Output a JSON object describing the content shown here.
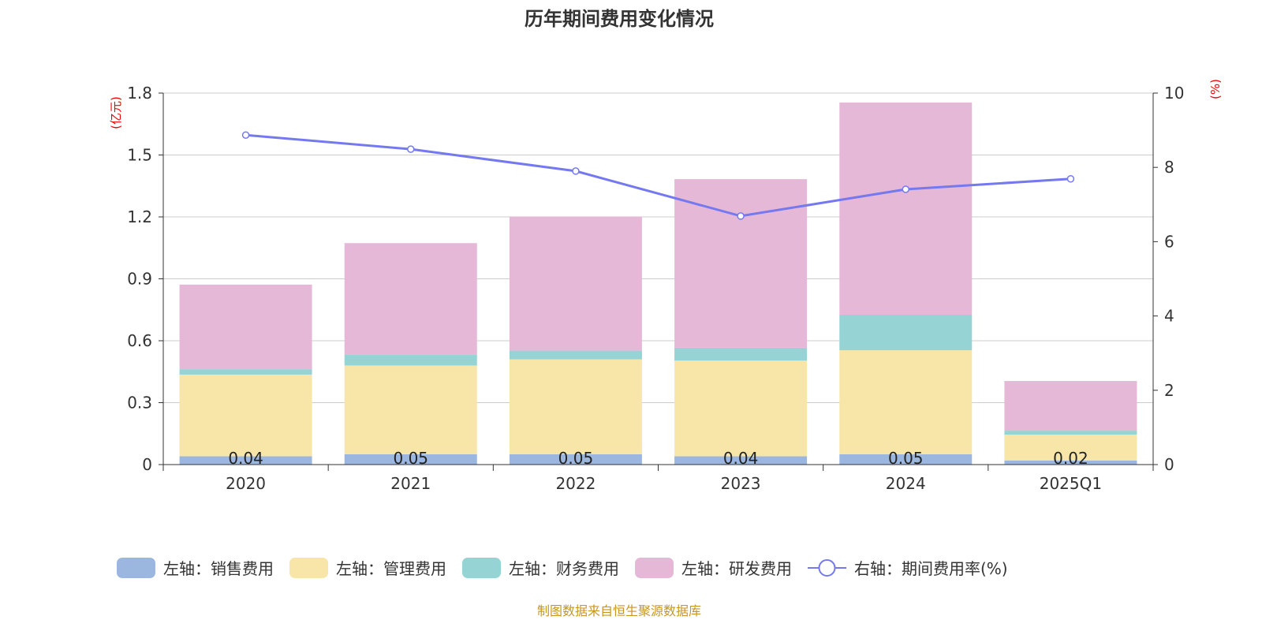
{
  "chart_data": {
    "type": "bar",
    "title": "历年期间费用变化情况",
    "ylabel_left": "(亿元)",
    "ylabel_right": "(%)",
    "categories": [
      "2020",
      "2021",
      "2022",
      "2023",
      "2024",
      "2025Q1"
    ],
    "ylim_left": [
      0,
      1.8
    ],
    "yticks_left": [
      "0",
      "0.3",
      "0.6",
      "0.9",
      "1.2",
      "1.5",
      "1.8"
    ],
    "ylim_right": [
      0,
      10
    ],
    "yticks_right": [
      "0",
      "2",
      "4",
      "6",
      "8",
      "10"
    ],
    "series": [
      {
        "name": "左轴：销售费用",
        "color": "#9bb7e0",
        "values": [
          0.04,
          0.05,
          0.05,
          0.04,
          0.05,
          0.02
        ],
        "labels": [
          "0.04",
          "0.05",
          "0.05",
          "0.04",
          "0.05",
          "0.02"
        ]
      },
      {
        "name": "左轴：管理费用",
        "color": "#f7e6a8",
        "values": [
          0.396,
          0.43,
          0.46,
          0.464,
          0.504,
          0.125
        ]
      },
      {
        "name": "左轴：财务费用",
        "color": "#96d3d4",
        "values": [
          0.026,
          0.054,
          0.042,
          0.062,
          0.172,
          0.019
        ]
      },
      {
        "name": "左轴：研发费用",
        "color": "#e6b8d8",
        "values": [
          0.41,
          0.539,
          0.65,
          0.817,
          1.028,
          0.241
        ]
      }
    ],
    "line": {
      "name": "右轴：期间费用率(%)",
      "color": "#7579f0",
      "values": [
        8.87,
        8.49,
        7.9,
        6.69,
        7.41,
        7.69
      ]
    },
    "grid": true,
    "legend_position": "bottom",
    "source": "制图数据来自恒生聚源数据库"
  }
}
